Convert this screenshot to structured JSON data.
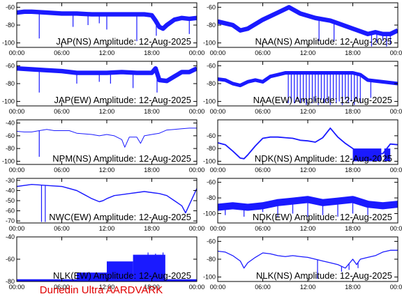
{
  "footer": "Dunedin Ultra AARDVARK",
  "line_color": "#1a1aff",
  "time_ticks": [
    "00:00",
    "06:00",
    "12:00",
    "18:00",
    "00:00"
  ],
  "chart_data": [
    {
      "type": "line",
      "title": "JAP(NS) Amplitude: 12-Aug-2025",
      "ylim": [
        -105,
        -55
      ],
      "yticks": [
        -100,
        -80,
        -60
      ],
      "band": 5,
      "series": [
        {
          "x": [
            0,
            1,
            2,
            4,
            6,
            8,
            10,
            12,
            14,
            16,
            17,
            18,
            18.5,
            19,
            19.5,
            20,
            21,
            22,
            23,
            24
          ],
          "values": [
            -66,
            -65,
            -65,
            -66,
            -67,
            -67,
            -68,
            -68,
            -68,
            -68,
            -68,
            -69,
            -75,
            -82,
            -84,
            -80,
            -74,
            -72,
            -73,
            -72
          ]
        }
      ],
      "spikes": [
        {
          "x": 3,
          "to": -95
        },
        {
          "x": 7.5,
          "to": -82
        },
        {
          "x": 9.5,
          "to": -80
        },
        {
          "x": 11,
          "to": -78
        },
        {
          "x": 12,
          "to": -85
        },
        {
          "x": 16,
          "to": -98
        },
        {
          "x": 18.6,
          "to": -92
        },
        {
          "x": 23,
          "to": -90
        }
      ]
    },
    {
      "type": "line",
      "title": "NAA(NS) Amplitude: 12-Aug-2025",
      "ylim": [
        -105,
        -55
      ],
      "yticks": [
        -100,
        -80,
        -60
      ],
      "band": 5,
      "series": [
        {
          "x": [
            0,
            2,
            3,
            4,
            6,
            8,
            9.5,
            11,
            13,
            15,
            16,
            18,
            20,
            21,
            22,
            23,
            24
          ],
          "values": [
            -76,
            -80,
            -86,
            -84,
            -74,
            -66,
            -60,
            -67,
            -72,
            -75,
            -78,
            -84,
            -90,
            -88,
            -90,
            -90,
            -86
          ]
        }
      ],
      "spikes": [
        {
          "x": 13.5,
          "to": -98
        },
        {
          "x": 15.5,
          "to": -98
        },
        {
          "x": 20.5,
          "to": -104
        },
        {
          "x": 21.2,
          "to": -100
        },
        {
          "x": 22,
          "to": -98
        },
        {
          "x": 22.5,
          "to": -104
        },
        {
          "x": 23,
          "to": -102
        }
      ]
    },
    {
      "type": "line",
      "title": "JAP(EW) Amplitude: 12-Aug-2025",
      "ylim": [
        -105,
        -55
      ],
      "yticks": [
        -100,
        -80,
        -60
      ],
      "band": 5,
      "series": [
        {
          "x": [
            0,
            2,
            4,
            6,
            8,
            10,
            12,
            14,
            16,
            18,
            18.5,
            19,
            20,
            21,
            22,
            23,
            24
          ],
          "values": [
            -63,
            -64,
            -65,
            -66,
            -68,
            -68,
            -68,
            -67,
            -68,
            -68,
            -63,
            -76,
            -77,
            -72,
            -67,
            -67,
            -63
          ]
        }
      ],
      "spikes": [
        {
          "x": 3,
          "to": -90
        },
        {
          "x": 8,
          "to": -80
        },
        {
          "x": 11,
          "to": -78
        },
        {
          "x": 12.5,
          "to": -80
        },
        {
          "x": 15.5,
          "to": -85
        },
        {
          "x": 18.7,
          "to": -90
        }
      ]
    },
    {
      "type": "line",
      "title": "NAA(EW) Amplitude: 12-Aug-2025",
      "ylim": [
        -105,
        -55
      ],
      "yticks": [
        -100,
        -80,
        -60
      ],
      "band": 4,
      "series": [
        {
          "x": [
            0,
            1,
            2,
            3,
            4,
            5,
            6,
            7,
            8,
            9,
            10,
            12,
            14,
            16,
            18,
            19,
            20,
            22,
            24
          ],
          "values": [
            -75,
            -76,
            -80,
            -82,
            -78,
            -76,
            -78,
            -72,
            -70,
            -68,
            -68,
            -68,
            -68,
            -68,
            -68,
            -70,
            -76,
            -78,
            -80
          ]
        }
      ],
      "spikes": [
        {
          "x": 9.4,
          "to": -102
        },
        {
          "x": 9.8,
          "to": -100
        },
        {
          "x": 10.2,
          "to": -102
        },
        {
          "x": 10.6,
          "to": -98
        },
        {
          "x": 11,
          "to": -102
        },
        {
          "x": 11.4,
          "to": -100
        },
        {
          "x": 11.8,
          "to": -104
        },
        {
          "x": 12.2,
          "to": -98
        },
        {
          "x": 12.6,
          "to": -102
        },
        {
          "x": 13,
          "to": -100
        },
        {
          "x": 13.4,
          "to": -104
        },
        {
          "x": 13.8,
          "to": -98
        },
        {
          "x": 14.2,
          "to": -102
        },
        {
          "x": 14.6,
          "to": -100
        },
        {
          "x": 15,
          "to": -104
        },
        {
          "x": 15.4,
          "to": -98
        },
        {
          "x": 15.8,
          "to": -102
        },
        {
          "x": 16.2,
          "to": -100
        },
        {
          "x": 16.6,
          "to": -104
        },
        {
          "x": 17,
          "to": -98
        },
        {
          "x": 17.4,
          "to": -102
        },
        {
          "x": 17.8,
          "to": -100
        },
        {
          "x": 18.2,
          "to": -104
        },
        {
          "x": 18.6,
          "to": -98
        },
        {
          "x": 19,
          "to": -102
        },
        {
          "x": 20.4,
          "to": -96
        }
      ]
    },
    {
      "type": "line",
      "title": "NPM(NS) Amplitude: 12-Aug-2025",
      "ylim": [
        -105,
        -35
      ],
      "yticks": [
        -100,
        -80,
        -60,
        -40
      ],
      "band": 1,
      "series": [
        {
          "x": [
            0,
            1,
            2,
            3,
            4,
            5,
            6,
            7,
            8,
            9,
            10,
            11,
            12,
            13,
            14,
            14.4,
            15,
            16,
            16.5,
            17,
            18,
            19,
            20,
            21,
            22,
            23,
            24
          ],
          "values": [
            -53,
            -54,
            -54,
            -52,
            -50,
            -52,
            -52,
            -52,
            -56,
            -57,
            -58,
            -60,
            -58,
            -60,
            -66,
            -78,
            -62,
            -62,
            -72,
            -60,
            -58,
            -56,
            -51,
            -50,
            -49,
            -48,
            -48
          ]
        }
      ],
      "spikes": [
        {
          "x": 3,
          "to": -93
        }
      ]
    },
    {
      "type": "line",
      "title": "NDK(NS) Amplitude: 12-Aug-2025",
      "ylim": [
        -105,
        -35
      ],
      "yticks": [
        -100,
        -80,
        -60
      ],
      "band": 2,
      "series": [
        {
          "x": [
            0,
            1,
            2,
            3,
            3.5,
            4,
            5,
            6,
            7,
            8,
            9,
            10,
            11,
            12,
            13,
            14,
            15,
            16,
            17,
            18,
            19,
            20,
            21,
            22,
            23,
            24
          ],
          "values": [
            -71,
            -74,
            -84,
            -95,
            -96,
            -90,
            -76,
            -64,
            -62,
            -62,
            -63,
            -64,
            -67,
            -68,
            -70,
            -63,
            -48,
            -62,
            -72,
            -80,
            -88,
            -88,
            -88,
            -88,
            -73,
            -74
          ]
        }
      ],
      "blocks": [
        {
          "x0": 18,
          "x1": 21.8,
          "top": -80,
          "bottom": -100
        },
        {
          "x0": 22.2,
          "x1": 23,
          "top": -80,
          "bottom": -100
        }
      ]
    },
    {
      "type": "line",
      "title": "NWC(EW) Amplitude: 12-Aug-2025",
      "ylim": [
        -72,
        -28
      ],
      "yticks": [
        -70,
        -60,
        -50,
        -40,
        -30
      ],
      "band": 1,
      "series": [
        {
          "x": [
            0,
            2,
            4,
            6,
            7,
            8,
            9,
            10,
            11,
            11.5,
            12,
            13,
            14,
            15,
            16,
            17,
            18,
            19,
            20,
            21,
            22,
            22.5,
            23,
            24
          ],
          "values": [
            -36,
            -34,
            -35,
            -36,
            -38,
            -40,
            -44,
            -48,
            -51,
            -50,
            -48,
            -45,
            -44,
            -43,
            -42,
            -41,
            -42,
            -43,
            -45,
            -50,
            -55,
            -62,
            -54,
            -38
          ]
        }
      ],
      "spikes": [
        {
          "x": 3.3,
          "to": -71
        },
        {
          "x": 3.8,
          "to": -71
        }
      ]
    },
    {
      "type": "line",
      "title": "NDK(EW) Amplitude: 12-Aug-2025",
      "ylim": [
        -112,
        -55
      ],
      "yticks": [
        -100,
        -80,
        -60
      ],
      "band": 9,
      "series": [
        {
          "x": [
            0,
            2,
            4,
            6,
            8,
            10,
            12,
            14,
            16,
            18,
            20,
            22,
            24
          ],
          "values": [
            -92,
            -90,
            -92,
            -90,
            -86,
            -84,
            -82,
            -86,
            -84,
            -82,
            -88,
            -90,
            -88
          ]
        }
      ],
      "spikes": [
        {
          "x": 1,
          "to": -102
        },
        {
          "x": 3.5,
          "to": -104
        },
        {
          "x": 6,
          "to": -98
        },
        {
          "x": 8,
          "to": -104
        },
        {
          "x": 10,
          "to": -100
        },
        {
          "x": 12,
          "to": -104
        },
        {
          "x": 14,
          "to": -102
        },
        {
          "x": 16,
          "to": -104
        },
        {
          "x": 18,
          "to": -100
        },
        {
          "x": 20,
          "to": -102
        }
      ]
    },
    {
      "type": "line",
      "title": "NLK(EW) Amplitude: 12-Aug-2025",
      "ylim": [
        -80,
        -40
      ],
      "yticks": [
        -80,
        -60,
        -40
      ],
      "band": 2,
      "series": [
        {
          "x": [
            0,
            4,
            8,
            12,
            16,
            18,
            20,
            24
          ],
          "values": [
            -79,
            -79,
            -79,
            -79,
            -79,
            -79,
            -79,
            -79
          ]
        }
      ],
      "blocks": [
        {
          "x0": 8,
          "x1": 12,
          "top": -72,
          "bottom": -80
        },
        {
          "x0": 12,
          "x1": 15.5,
          "top": -62,
          "bottom": -80
        },
        {
          "x0": 15.5,
          "x1": 19.8,
          "top": -56,
          "bottom": -80
        }
      ],
      "spikes": [
        {
          "x": 17.5,
          "to": -54
        },
        {
          "x": 18.5,
          "to": -55
        },
        {
          "x": 19.5,
          "to": -54
        }
      ]
    },
    {
      "type": "line",
      "title": "NLK(NS) Amplitude: 12-Aug-2025",
      "ylim": [
        -105,
        -55
      ],
      "yticks": [
        -100,
        -80,
        -60
      ],
      "band": 1,
      "series": [
        {
          "x": [
            0,
            1,
            2,
            3,
            3.5,
            4,
            5,
            6,
            7,
            8,
            9,
            10,
            11,
            12,
            13,
            14,
            15,
            16,
            17,
            18,
            18.5,
            19,
            20,
            21,
            22,
            23,
            24
          ],
          "values": [
            -71,
            -72,
            -76,
            -82,
            -90,
            -84,
            -78,
            -73,
            -74,
            -76,
            -77,
            -76,
            -77,
            -78,
            -80,
            -82,
            -84,
            -86,
            -90,
            -80,
            -86,
            -80,
            -78,
            -76,
            -72,
            -70,
            -70
          ]
        }
      ],
      "spikes": [
        {
          "x": 13.3,
          "to": -102
        },
        {
          "x": 16.5,
          "to": -94
        },
        {
          "x": 17.5,
          "to": -92
        },
        {
          "x": 18.7,
          "to": -90
        }
      ]
    }
  ]
}
